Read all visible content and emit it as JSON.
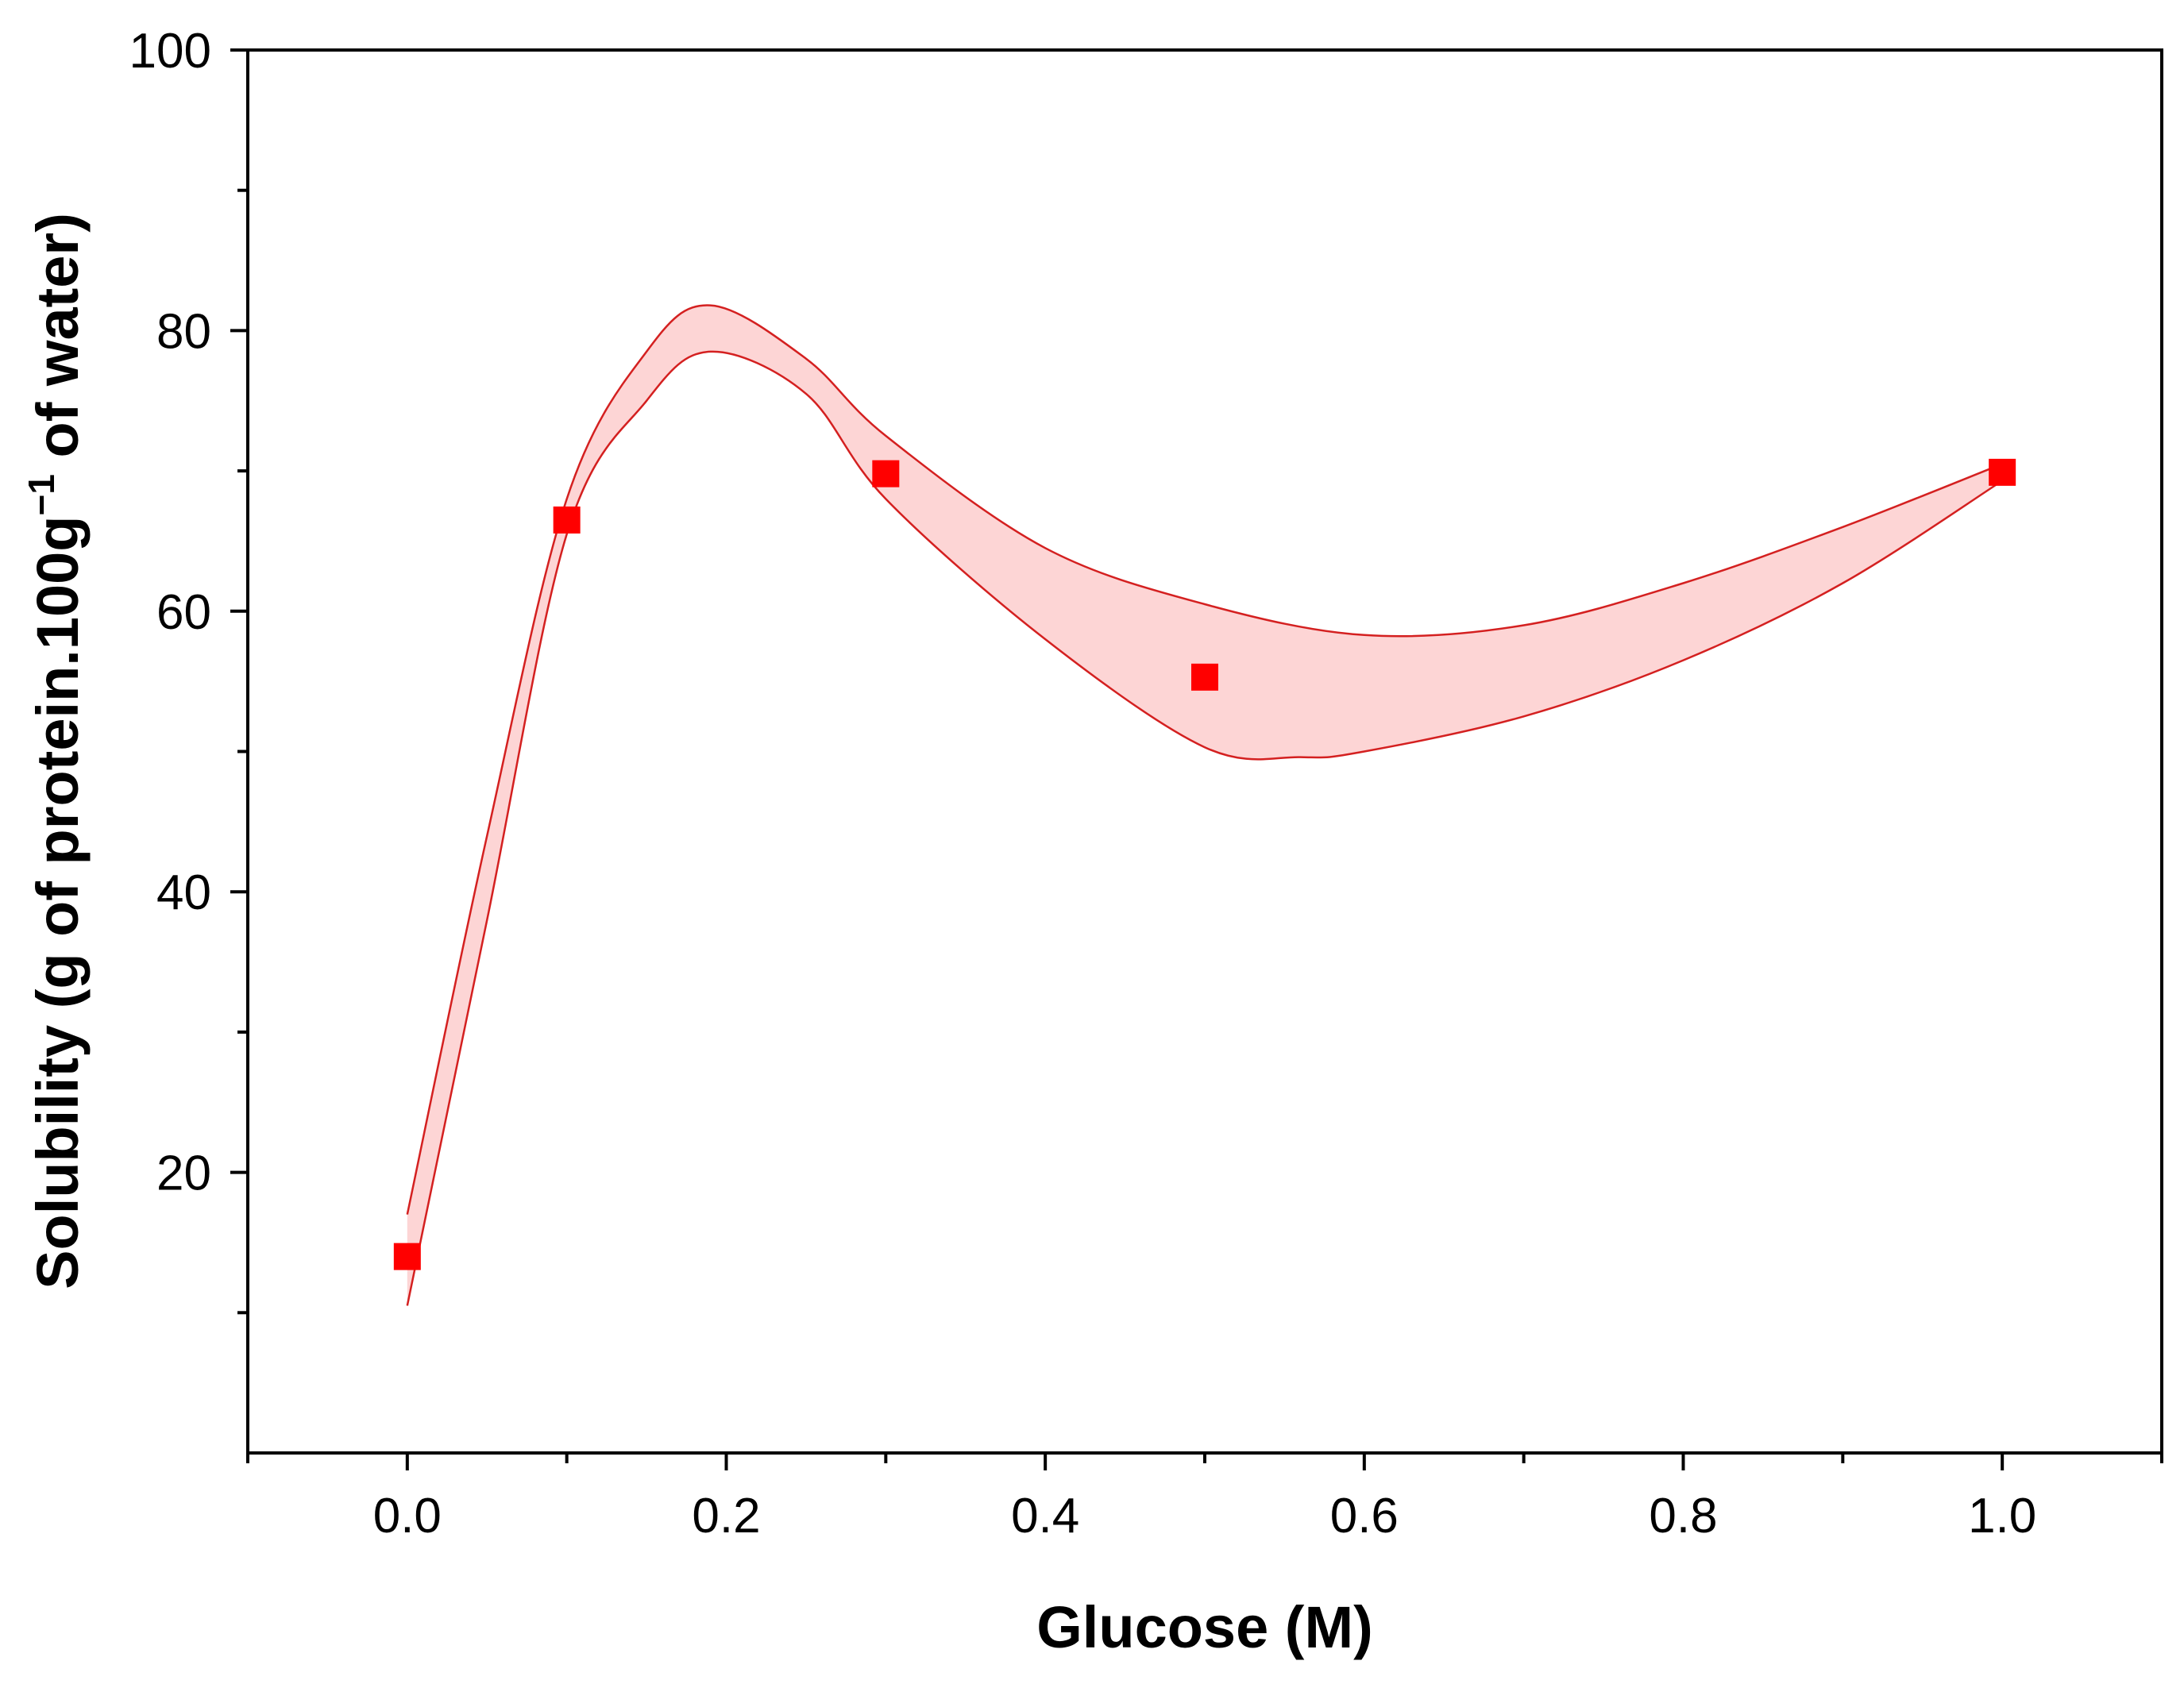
{
  "chart_data": {
    "type": "scatter",
    "title": "",
    "xlabel": "Glucose (M)",
    "ylabel": {
      "prefix": "Solubility (g of protein.100g",
      "superscript": "−1",
      "suffix": " of water)"
    },
    "xlim": [
      -0.1,
      1.1
    ],
    "ylim": [
      0,
      100
    ],
    "x_ticks": [
      0.0,
      0.2,
      0.4,
      0.6,
      0.8,
      1.0
    ],
    "x_tick_labels": [
      "0.0",
      "0.2",
      "0.4",
      "0.6",
      "0.8",
      "1.0"
    ],
    "y_ticks": [
      20,
      40,
      60,
      80,
      100
    ],
    "y_tick_labels": [
      "20",
      "40",
      "60",
      "80",
      "100"
    ],
    "grid": false,
    "series": [
      {
        "name": "Solubility",
        "marker": "square",
        "color": "#ff0000",
        "x": [
          0.0,
          0.1,
          0.3,
          0.5,
          1.0
        ],
        "y": [
          14,
          66.5,
          69.8,
          55.3,
          69.9
        ]
      }
    ],
    "confidence_band": {
      "fill": "#fdd5d5",
      "stroke": "#d42020",
      "upper": [
        [
          0.0,
          17
        ],
        [
          0.05,
          44
        ],
        [
          0.1,
          68
        ],
        [
          0.15,
          78.5
        ],
        [
          0.19,
          81.8
        ],
        [
          0.25,
          78
        ],
        [
          0.3,
          72.5
        ],
        [
          0.4,
          64.5
        ],
        [
          0.5,
          60.5
        ],
        [
          0.6,
          58.3
        ],
        [
          0.7,
          59
        ],
        [
          0.8,
          62
        ],
        [
          0.9,
          66
        ],
        [
          1.0,
          70.5
        ]
      ],
      "lower": [
        [
          0.0,
          10.5
        ],
        [
          0.05,
          38
        ],
        [
          0.1,
          65.5
        ],
        [
          0.15,
          75
        ],
        [
          0.19,
          78.5
        ],
        [
          0.25,
          75.5
        ],
        [
          0.3,
          68
        ],
        [
          0.4,
          58
        ],
        [
          0.5,
          50.3
        ],
        [
          0.56,
          49.6
        ],
        [
          0.6,
          50
        ],
        [
          0.7,
          52.5
        ],
        [
          0.8,
          56.5
        ],
        [
          0.9,
          62
        ],
        [
          1.0,
          69.3
        ]
      ]
    }
  }
}
